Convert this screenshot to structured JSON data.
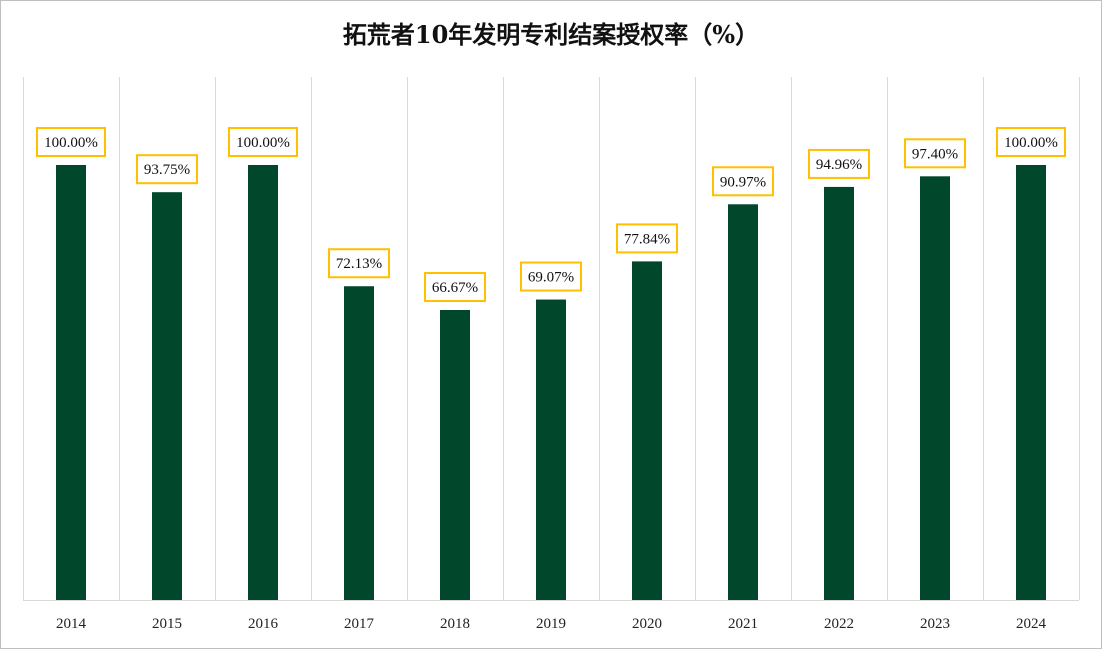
{
  "chart_data": {
    "type": "bar",
    "title": "拓荒者10年发明专利结案授权率（%）",
    "categories": [
      "2014",
      "2015",
      "2016",
      "2017",
      "2018",
      "2019",
      "2020",
      "2021",
      "2022",
      "2023",
      "2024"
    ],
    "values": [
      100.0,
      93.75,
      100.0,
      72.13,
      66.67,
      69.07,
      77.84,
      90.97,
      94.96,
      97.4,
      100.0
    ],
    "data_labels": [
      "100.00%",
      "93.75%",
      "100.00%",
      "72.13%",
      "66.67%",
      "69.07%",
      "77.84%",
      "90.97%",
      "94.96%",
      "97.40%",
      "100.00%"
    ],
    "xlabel": "",
    "ylabel": "",
    "ylim": [
      0,
      100
    ],
    "grid": "vertical",
    "legend": "none",
    "colors": {
      "bar": "#00472b",
      "label_border": "#ffc000",
      "gridline": "#d9d9d9"
    }
  }
}
